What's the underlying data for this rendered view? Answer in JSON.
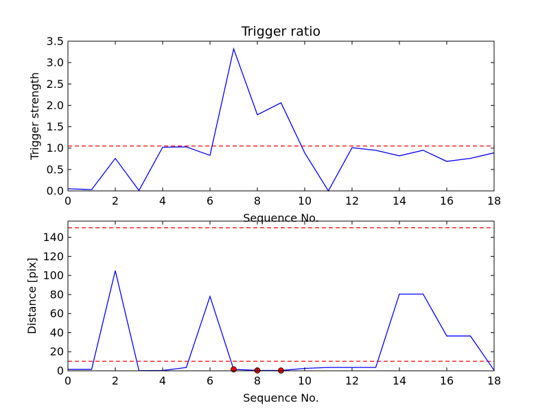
{
  "chart_data": [
    {
      "type": "line",
      "title": "Trigger ratio",
      "xlabel": "Sequence No.",
      "ylabel": "Trigger strength",
      "xlim": [
        0,
        18
      ],
      "ylim": [
        0,
        3.5
      ],
      "xticks": [
        "0",
        "2",
        "4",
        "6",
        "8",
        "10",
        "12",
        "14",
        "16",
        "18"
      ],
      "yticks": [
        "0.0",
        "0.5",
        "1.0",
        "1.5",
        "2.0",
        "2.5",
        "3.0",
        "3.5"
      ],
      "grid": false,
      "series": [
        {
          "color": "#0000ff",
          "style": "solid",
          "x": [
            0,
            1,
            2,
            3,
            4,
            5,
            6,
            7,
            8,
            9,
            10,
            11,
            12,
            13,
            14,
            15,
            16,
            17,
            18
          ],
          "values": [
            0.05,
            0.03,
            0.76,
            0.01,
            1.02,
            1.03,
            0.83,
            3.32,
            1.78,
            2.06,
            0.89,
            0.0,
            1.01,
            0.95,
            0.82,
            0.95,
            0.69,
            0.76,
            0.89
          ]
        }
      ],
      "threshold_lines": [
        {
          "y": 1.05,
          "color": "#ff0000",
          "style": "dashed"
        }
      ]
    },
    {
      "type": "line",
      "title": "",
      "xlabel": "Sequence No.",
      "ylabel": "Distance [pix]",
      "xlim": [
        0,
        18
      ],
      "ylim": [
        0,
        157
      ],
      "xticks": [
        "0",
        "2",
        "4",
        "6",
        "8",
        "10",
        "12",
        "14",
        "16",
        "18"
      ],
      "yticks": [
        "0",
        "20",
        "40",
        "60",
        "80",
        "100",
        "120",
        "140"
      ],
      "grid": false,
      "series": [
        {
          "color": "#0000ff",
          "style": "solid",
          "x": [
            0,
            1,
            2,
            3,
            4,
            5,
            6,
            7,
            8,
            9,
            10,
            11,
            12,
            13,
            14,
            15,
            16,
            17,
            18
          ],
          "values": [
            1.5,
            1.5,
            105,
            0.2,
            0.3,
            3.5,
            78,
            1.5,
            0.4,
            0.3,
            2.5,
            3.5,
            3.5,
            3.5,
            80.5,
            80.5,
            36.5,
            36.5,
            0.5
          ]
        }
      ],
      "markers": {
        "color": "#ff0000",
        "x": [
          7,
          8,
          9
        ],
        "values": [
          1.5,
          0.4,
          0.3
        ]
      },
      "threshold_lines": [
        {
          "y": 150,
          "color": "#ff0000",
          "style": "dashed"
        },
        {
          "y": 10,
          "color": "#ff0000",
          "style": "dashed"
        }
      ]
    }
  ]
}
